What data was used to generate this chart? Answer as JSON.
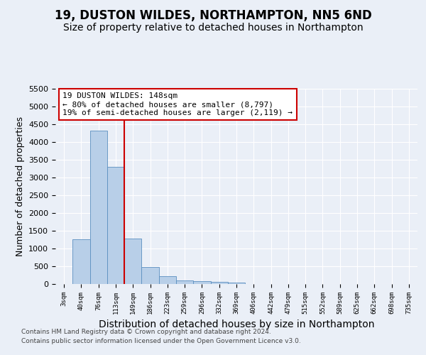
{
  "title": "19, DUSTON WILDES, NORTHAMPTON, NN5 6ND",
  "subtitle": "Size of property relative to detached houses in Northampton",
  "xlabel": "Distribution of detached houses by size in Northampton",
  "ylabel": "Number of detached properties",
  "bin_labels": [
    "3sqm",
    "40sqm",
    "76sqm",
    "113sqm",
    "149sqm",
    "186sqm",
    "223sqm",
    "259sqm",
    "296sqm",
    "332sqm",
    "369sqm",
    "406sqm",
    "442sqm",
    "479sqm",
    "515sqm",
    "552sqm",
    "589sqm",
    "625sqm",
    "662sqm",
    "698sqm",
    "735sqm"
  ],
  "bar_values": [
    0,
    1260,
    4320,
    3300,
    1280,
    490,
    220,
    100,
    80,
    55,
    50,
    0,
    0,
    0,
    0,
    0,
    0,
    0,
    0,
    0,
    0
  ],
  "bar_color": "#b8cfe8",
  "bar_edge_color": "#5a8fc0",
  "vline_x": 3.5,
  "vline_color": "#cc0000",
  "annotation_line1": "19 DUSTON WILDES: 148sqm",
  "annotation_line2": "← 80% of detached houses are smaller (8,797)",
  "annotation_line3": "19% of semi-detached houses are larger (2,119) →",
  "annotation_box_color": "#ffffff",
  "annotation_border_color": "#cc0000",
  "ylim": [
    0,
    5500
  ],
  "yticks": [
    0,
    500,
    1000,
    1500,
    2000,
    2500,
    3000,
    3500,
    4000,
    4500,
    5000,
    5500
  ],
  "footer_line1": "Contains HM Land Registry data © Crown copyright and database right 2024.",
  "footer_line2": "Contains public sector information licensed under the Open Government Licence v3.0.",
  "bg_color": "#eaeff7",
  "plot_bg_color": "#eaeff7",
  "title_fontsize": 12,
  "subtitle_fontsize": 10,
  "xlabel_fontsize": 10,
  "ylabel_fontsize": 9
}
